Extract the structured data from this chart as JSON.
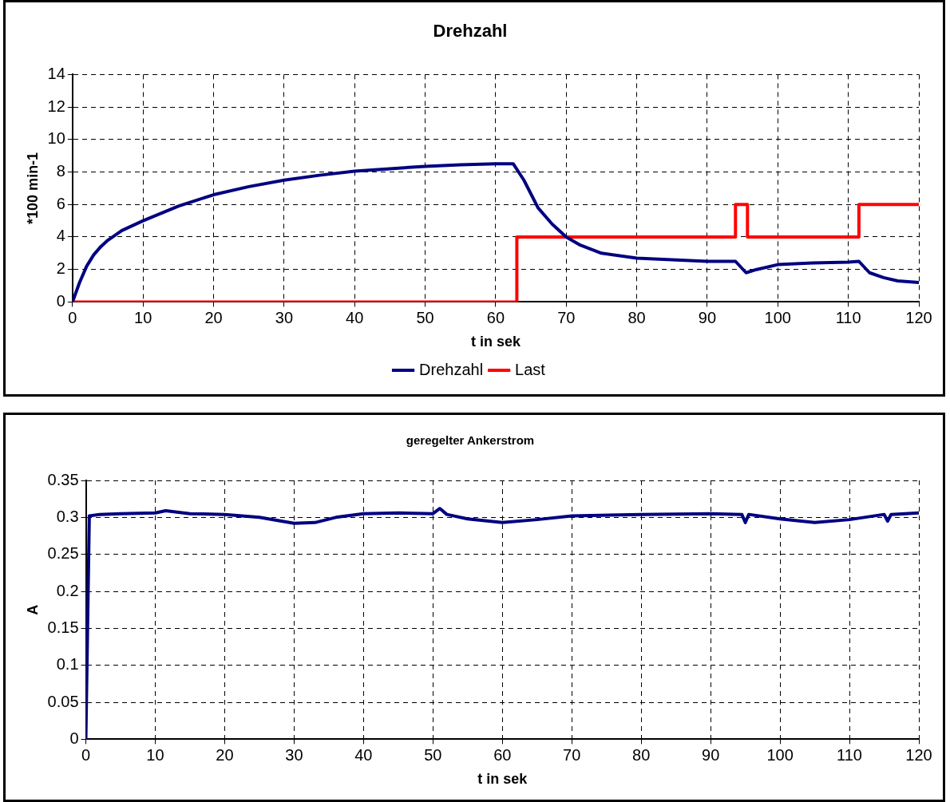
{
  "chart_data": [
    {
      "type": "line",
      "title": "Drehzahl",
      "xlabel": "t in sek",
      "ylabel": "*100 min-1",
      "xlim": [
        0,
        120
      ],
      "xticks": [
        0,
        10,
        20,
        30,
        40,
        50,
        60,
        70,
        80,
        90,
        100,
        110,
        120
      ],
      "ylim": [
        0,
        14
      ],
      "yticks": [
        0,
        2,
        4,
        6,
        8,
        10,
        12,
        14
      ],
      "grid": true,
      "legend": "bottom",
      "marker": "none",
      "line_style": "solid",
      "series": [
        {
          "name": "Drehzahl",
          "color": "#000080",
          "x": [
            0,
            1,
            2,
            3,
            4,
            5,
            7,
            10,
            15,
            20,
            25,
            30,
            35,
            40,
            45,
            50,
            55,
            60,
            62.5,
            64,
            66,
            68,
            70,
            72,
            75,
            80,
            85,
            90,
            94,
            95.5,
            97,
            100,
            105,
            110,
            111.5,
            113,
            115,
            117,
            120
          ],
          "values": [
            0,
            1.2,
            2.2,
            2.9,
            3.4,
            3.8,
            4.4,
            5.0,
            5.9,
            6.6,
            7.1,
            7.5,
            7.8,
            8.05,
            8.2,
            8.35,
            8.45,
            8.5,
            8.5,
            7.5,
            5.8,
            4.8,
            4.0,
            3.5,
            3.0,
            2.7,
            2.6,
            2.5,
            2.5,
            1.8,
            2.0,
            2.3,
            2.4,
            2.45,
            2.5,
            1.8,
            1.5,
            1.3,
            1.2
          ]
        },
        {
          "name": "Last",
          "color": "#ff0000",
          "x": [
            0,
            63,
            63,
            94,
            94,
            95.7,
            95.7,
            111.5,
            111.5,
            120
          ],
          "values": [
            0,
            0,
            4,
            4,
            6,
            6,
            4,
            4,
            6,
            6
          ]
        }
      ]
    },
    {
      "type": "line",
      "title": "geregelter Ankerstrom",
      "xlabel": "t in sek",
      "ylabel": "A",
      "xlim": [
        0,
        120
      ],
      "xticks": [
        0,
        10,
        20,
        30,
        40,
        50,
        60,
        70,
        80,
        90,
        100,
        110,
        120
      ],
      "ylim": [
        0,
        0.35
      ],
      "yticks": [
        0,
        0.05,
        0.1,
        0.15,
        0.2,
        0.25,
        0.3,
        0.35
      ],
      "grid": true,
      "marker": "none",
      "line_style": "solid",
      "series": [
        {
          "color": "#000080",
          "x": [
            0,
            0.5,
            2,
            5,
            10,
            11.5,
            15,
            20,
            25,
            30,
            33,
            36,
            40,
            45,
            50,
            51,
            52,
            55,
            60,
            65,
            70,
            80,
            90,
            94.5,
            95,
            95.5,
            100,
            105,
            110,
            115,
            115.5,
            116,
            120
          ],
          "values": [
            0,
            0.302,
            0.304,
            0.305,
            0.306,
            0.309,
            0.305,
            0.304,
            0.3,
            0.292,
            0.293,
            0.3,
            0.305,
            0.306,
            0.305,
            0.312,
            0.304,
            0.298,
            0.293,
            0.297,
            0.302,
            0.304,
            0.305,
            0.304,
            0.293,
            0.304,
            0.298,
            0.293,
            0.297,
            0.304,
            0.295,
            0.304,
            0.306
          ]
        }
      ]
    }
  ]
}
